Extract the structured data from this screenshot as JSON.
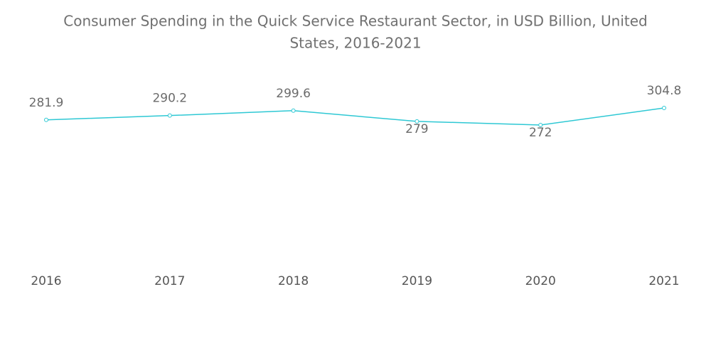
{
  "chart_data": {
    "type": "line",
    "title_lines": [
      "Consumer Spending in the Quick Service Restaurant Sector, in USD Billion, United",
      "States, 2016-2021"
    ],
    "categories": [
      "2016",
      "2017",
      "2018",
      "2019",
      "2020",
      "2021"
    ],
    "values": [
      281.9,
      290.2,
      299.6,
      279,
      272,
      304.8
    ],
    "color": "#2ec8d4"
  }
}
